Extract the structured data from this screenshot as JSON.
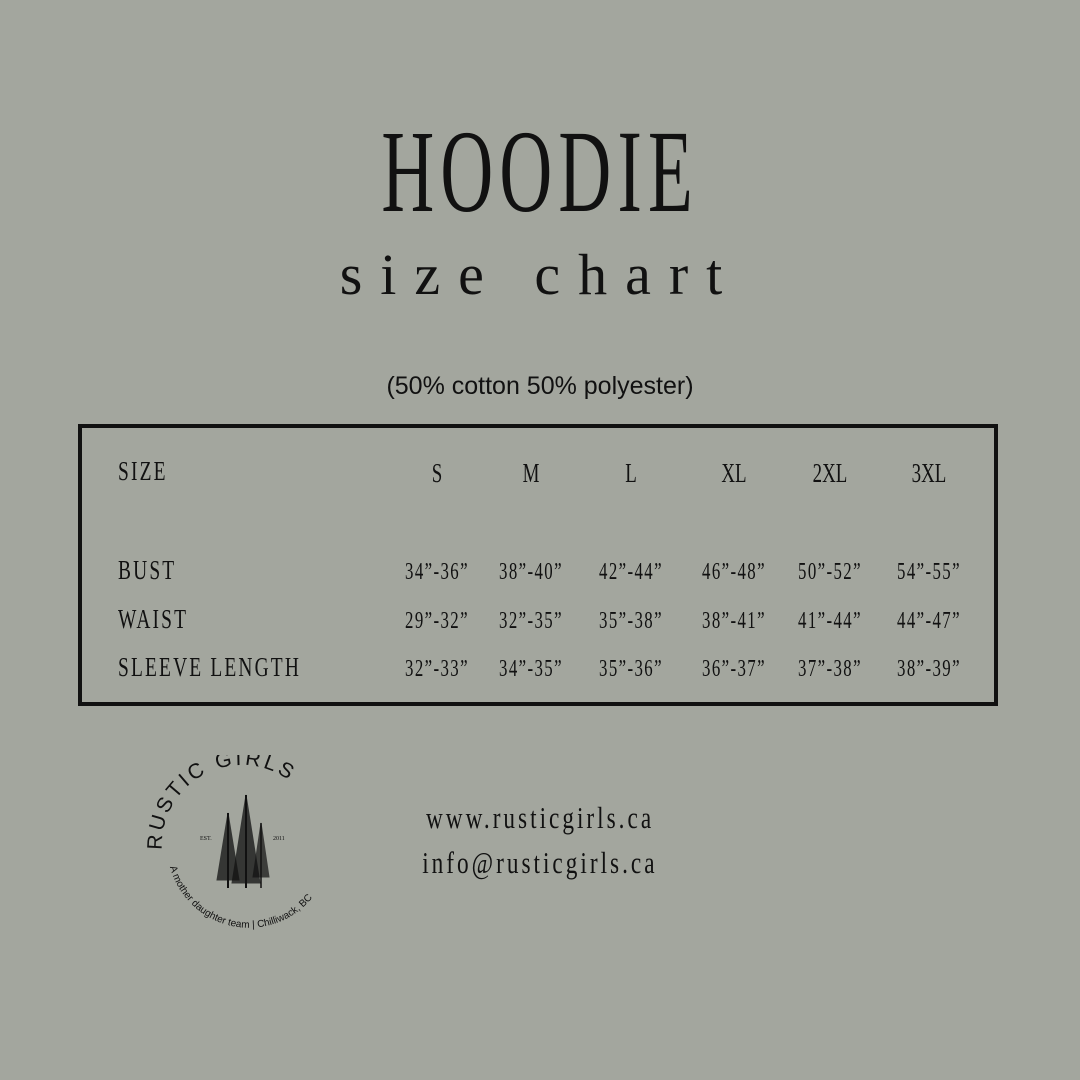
{
  "title": "HOODIE",
  "subtitle": "size chart",
  "material": "(50% cotton 50% polyester)",
  "table": {
    "header_label": "SIZE",
    "sizes": [
      "S",
      "M",
      "L",
      "XL",
      "2XL",
      "3XL"
    ],
    "rows": [
      {
        "label": "BUST",
        "values": [
          "34”-36”",
          "38”-40”",
          "42”-44”",
          "46”-48”",
          "50”-52”",
          "54”-55”"
        ]
      },
      {
        "label": "WAIST",
        "values": [
          "29”-32”",
          "32”-35”",
          "35”-38”",
          "38”-41”",
          "41”-44”",
          "44”-47”"
        ]
      },
      {
        "label": "SLEEVE LENGTH",
        "values": [
          "32”-33”",
          "34”-35”",
          "35”-36”",
          "36”-37”",
          "37”-38”",
          "38”-39”"
        ]
      }
    ]
  },
  "logo": {
    "name": "RUSTIC GIRLS",
    "est": "EST.",
    "year": "2011",
    "tagline": "A mother daughter team | Chilliwack, BC",
    "icon": "pine-trees-icon"
  },
  "contact": {
    "website": "www.rusticgirls.ca",
    "email": "info@rusticgirls.ca"
  },
  "colors": {
    "background": "#a3a69e",
    "text": "#111111"
  }
}
